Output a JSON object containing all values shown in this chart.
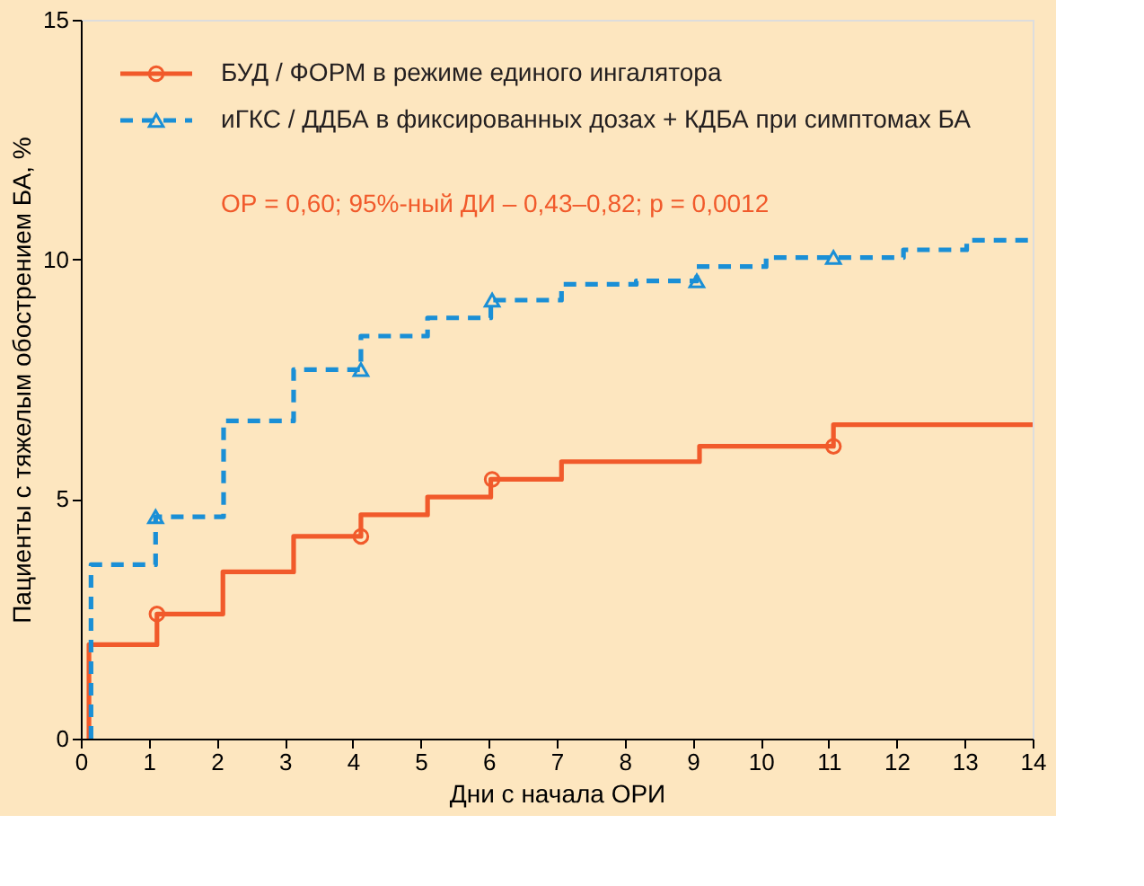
{
  "chart_data": {
    "type": "step",
    "xlabel": "Дни с начала ОРИ",
    "ylabel": "Пациенты с тяжелым обострением БА, %",
    "xlim": [
      0,
      14
    ],
    "xticks": [
      0,
      1,
      2,
      3,
      4,
      5,
      6,
      7,
      8,
      9,
      10,
      11,
      12,
      13,
      14
    ],
    "ylim": [
      0,
      15
    ],
    "yticks": [
      0,
      5,
      10,
      15
    ],
    "grid": false,
    "legend": "top left",
    "series": [
      {
        "name": "БУД / ФОРМ в режиме единого ингалятора",
        "color": "#f15a2b",
        "line_style": "solid",
        "x": [
          0.12,
          0.12,
          1.12,
          2.09,
          3.13,
          4.12,
          5.1,
          6.03,
          7.07,
          9.1,
          11.07,
          14
        ],
        "values": [
          0,
          1.96,
          2.6,
          3.48,
          4.22,
          4.67,
          5.04,
          5.41,
          5.78,
          6.1,
          6.55,
          6.55
        ]
      },
      {
        "name": "иГКС / ДДБА в фиксированных дозах + КДБА при симптомах БА",
        "color": "#1a8fd6",
        "line_style": "dashed",
        "x": [
          0.15,
          0.15,
          1.1,
          2.1,
          3.13,
          4.12,
          5.1,
          6.03,
          7.07,
          8.17,
          9.06,
          10.08,
          12.1,
          13.03,
          14
        ],
        "values": [
          0,
          3.63,
          4.63,
          6.63,
          7.7,
          8.4,
          8.78,
          9.15,
          9.48,
          9.55,
          9.85,
          10.04,
          10.2,
          10.4,
          10.4
        ]
      },
      {
        "type": "scatter",
        "marker": "circle",
        "color": "#f15a2b",
        "x": [
          1.12,
          4.12,
          6.05,
          11.07
        ],
        "values": [
          2.6,
          4.22,
          5.41,
          6.1
        ]
      },
      {
        "type": "scatter",
        "marker": "triangle",
        "color": "#1a8fd6",
        "x": [
          1.1,
          4.12,
          6.05,
          9.06,
          11.07
        ],
        "values": [
          4.63,
          7.7,
          9.15,
          9.55,
          10.04
        ]
      }
    ],
    "annotations": [
      "ОР = 0,60; 95%-ный ДИ – 0,43–0,82; p = 0,0012"
    ]
  }
}
